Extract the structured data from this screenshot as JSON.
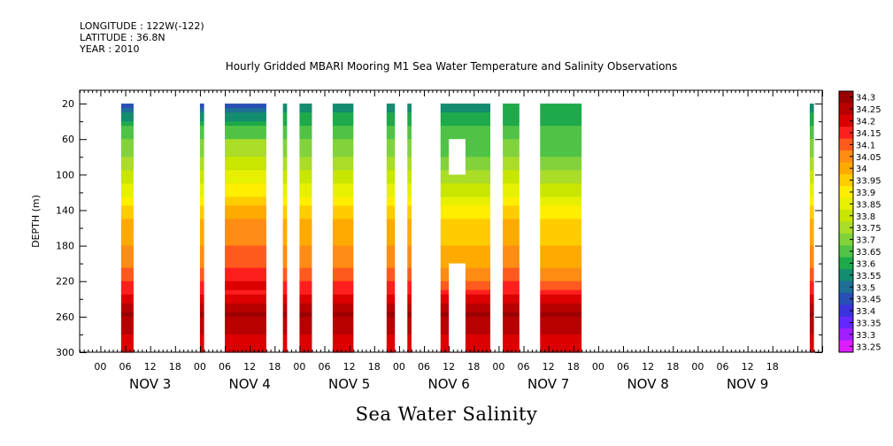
{
  "header": {
    "longitude": "LONGITUDE : 122W(-122)",
    "latitude": "LATITUDE : 36.8N",
    "year": "YEAR : 2010"
  },
  "chart_data": {
    "type": "heatmap",
    "title": "Hourly Gridded MBARI Mooring M1 Sea Water Temperature and Salinity Observations",
    "subtitle": "Sea Water Salinity",
    "xlabel": "",
    "ylabel": "DEPTH (m)",
    "x_hour_ticks": [
      "00",
      "06",
      "12",
      "18",
      "00",
      "06",
      "12",
      "18",
      "00",
      "06",
      "12",
      "18",
      "00",
      "06",
      "12",
      "18",
      "00",
      "06",
      "12",
      "18",
      "00",
      "06",
      "12",
      "18",
      "00",
      "06",
      "12",
      "18"
    ],
    "x_day_labels": [
      "NOV  3",
      "NOV  4",
      "NOV  5",
      "NOV  6",
      "NOV  7",
      "NOV  8",
      "NOV  9"
    ],
    "x_range_hours_from_nov3_00": [
      -5,
      174
    ],
    "y_ticks": [
      20,
      60,
      100,
      140,
      180,
      220,
      260,
      300
    ],
    "ylim": [
      300,
      5
    ],
    "data_depth_range": [
      20,
      300
    ],
    "colorbar": {
      "levels": [
        "34.3",
        "34.25",
        "34.2",
        "34.15",
        "34.1",
        "34.05",
        "34",
        "33.95",
        "33.9",
        "33.85",
        "33.8",
        "33.75",
        "33.7",
        "33.65",
        "33.6",
        "33.55",
        "33.5",
        "33.45",
        "33.4",
        "33.35",
        "33.3",
        "33.25"
      ],
      "colors": [
        "#9a0000",
        "#b80000",
        "#dc0000",
        "#ff1e1e",
        "#ff5a1e",
        "#ff8c14",
        "#ffaa00",
        "#ffcc00",
        "#ffee00",
        "#e6f000",
        "#c8e600",
        "#aadc28",
        "#82d23c",
        "#50c346",
        "#1eaa4b",
        "#148c6e",
        "#1e6e96",
        "#2850b4",
        "#3c32dc",
        "#6428ff",
        "#a01eff",
        "#dc1eff"
      ]
    },
    "profile_stops": [
      {
        "depth": 20,
        "value": 33.55
      },
      {
        "depth": 45,
        "value": 33.62
      },
      {
        "depth": 70,
        "value": 33.7
      },
      {
        "depth": 95,
        "value": 33.78
      },
      {
        "depth": 120,
        "value": 33.86
      },
      {
        "depth": 140,
        "value": 33.95
      },
      {
        "depth": 160,
        "value": 34.0
      },
      {
        "depth": 190,
        "value": 34.04
      },
      {
        "depth": 215,
        "value": 34.1
      },
      {
        "depth": 235,
        "value": 34.18
      },
      {
        "depth": 255,
        "value": 34.28
      },
      {
        "depth": 270,
        "value": 34.25
      },
      {
        "depth": 285,
        "value": 34.2
      },
      {
        "depth": 300,
        "value": 34.18
      }
    ],
    "data_segments": [
      {
        "start_hour": 5,
        "end_hour": 8,
        "surface_value": 33.45,
        "shift": 0.0
      },
      {
        "start_hour": 24,
        "end_hour": 25,
        "surface_value": 33.45,
        "shift": 0.0
      },
      {
        "start_hour": 30,
        "end_hour": 40,
        "surface_value": 33.45,
        "shift": 0.05
      },
      {
        "start_hour": 44,
        "end_hour": 45,
        "surface_value": 33.55,
        "shift": 0.0
      },
      {
        "start_hour": 48,
        "end_hour": 51,
        "surface_value": 33.55,
        "shift": 0.0
      },
      {
        "start_hour": 56,
        "end_hour": 61,
        "surface_value": 33.55,
        "shift": 0.0
      },
      {
        "start_hour": 69,
        "end_hour": 71,
        "surface_value": 33.55,
        "shift": 0.0
      },
      {
        "start_hour": 74,
        "end_hour": 75,
        "surface_value": 33.55,
        "shift": 0.0
      },
      {
        "start_hour": 82,
        "end_hour": 94,
        "surface_value": 33.55,
        "shift": -0.05
      },
      {
        "start_hour": 97,
        "end_hour": 101,
        "surface_value": 33.6,
        "shift": 0.0
      },
      {
        "start_hour": 106,
        "end_hour": 116,
        "surface_value": 33.6,
        "shift": -0.05
      },
      {
        "start_hour": 171,
        "end_hour": 172,
        "surface_value": 33.55,
        "shift": 0.0
      }
    ],
    "missing_boxes": [
      {
        "start_hour": 84,
        "end_hour": 88,
        "depth_top": 60,
        "depth_bottom": 100
      },
      {
        "start_hour": 84,
        "end_hour": 88,
        "depth_top": 200,
        "depth_bottom": 300
      }
    ]
  }
}
